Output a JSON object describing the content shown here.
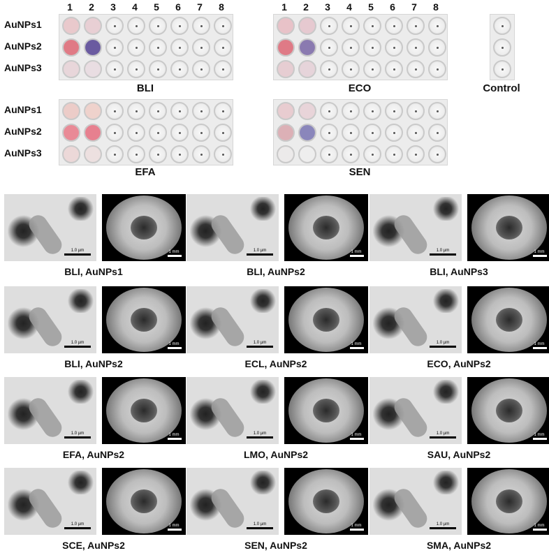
{
  "plates": {
    "column_numbers": [
      "1",
      "2",
      "3",
      "4",
      "5",
      "6",
      "7",
      "8"
    ],
    "row_labels": [
      "AuNPs1",
      "AuNPs2",
      "AuNPs3"
    ],
    "titles": {
      "bli": "BLI",
      "eco": "ECO",
      "control": "Control",
      "efa": "EFA",
      "sen": "SEN"
    },
    "tinted_wells": {
      "bli": [
        [
          "#e9c9cc",
          "#e8cfd4"
        ],
        [
          "#e07a85",
          "#6a5aa0"
        ],
        [
          "#e8d6da",
          "#e9dde2"
        ]
      ],
      "eco": [
        [
          "#e8c2c8",
          "#e6c9d0"
        ],
        [
          "#df7a86",
          "#8a7ab0"
        ],
        [
          "#e6cdd2",
          "#e6d4da"
        ]
      ],
      "efa": [
        [
          "#ecccc8",
          "#efd2cc"
        ],
        [
          "#e98a96",
          "#e7808f"
        ],
        [
          "#ecd8d8",
          "#ede0e0"
        ]
      ],
      "sen": [
        [
          "#e8ccd0",
          "#e8d4d9"
        ],
        [
          "#dcb0b6",
          "#8a86bb"
        ],
        [
          "#eceaea",
          "#eeeeee"
        ]
      ]
    }
  },
  "micrographs": {
    "tem_scale": "1.0 µm",
    "sem_scale": "1 mm",
    "captions": [
      "BLI, AuNPs1",
      "BLI, AuNPs2",
      "BLI, AuNPs3",
      "BLI, AuNPs2",
      "ECL, AuNPs2",
      "ECO, AuNPs2",
      "EFA, AuNPs2",
      "LMO, AuNPs2",
      "SAU, AuNPs2",
      "SCE, AuNPs2",
      "SEN, AuNPs2",
      "SMA, AuNPs2"
    ]
  }
}
